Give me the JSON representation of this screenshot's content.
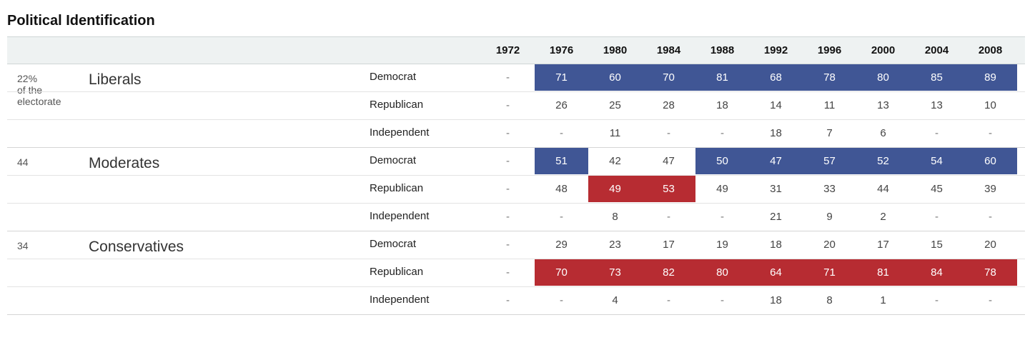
{
  "title": "Political Identification",
  "colors": {
    "democrat_highlight": "#405695",
    "republican_highlight": "#b72c32"
  },
  "chart_data": {
    "type": "table",
    "title": "Political Identification",
    "columns": [
      "1972",
      "1976",
      "1980",
      "1984",
      "1988",
      "1992",
      "1996",
      "2000",
      "2004",
      "2008"
    ],
    "groups": [
      {
        "pct": "22%",
        "pct_note": "of the electorate",
        "name": "Liberals",
        "rows": [
          {
            "party": "Democrat",
            "values": [
              "-",
              "71",
              "60",
              "70",
              "81",
              "68",
              "78",
              "80",
              "85",
              "89"
            ],
            "highlight": [
              "",
              "dem",
              "dem",
              "dem",
              "dem",
              "dem",
              "dem",
              "dem",
              "dem",
              "dem"
            ]
          },
          {
            "party": "Republican",
            "values": [
              "-",
              "26",
              "25",
              "28",
              "18",
              "14",
              "11",
              "13",
              "13",
              "10"
            ],
            "highlight": [
              "",
              "",
              "",
              "",
              "",
              "",
              "",
              "",
              "",
              ""
            ]
          },
          {
            "party": "Independent",
            "values": [
              "-",
              "-",
              "11",
              "-",
              "-",
              "18",
              "7",
              "6",
              "-",
              "-"
            ],
            "highlight": [
              "",
              "",
              "",
              "",
              "",
              "",
              "",
              "",
              "",
              ""
            ]
          }
        ]
      },
      {
        "pct": "44",
        "pct_note": "",
        "name": "Moderates",
        "rows": [
          {
            "party": "Democrat",
            "values": [
              "-",
              "51",
              "42",
              "47",
              "50",
              "47",
              "57",
              "52",
              "54",
              "60"
            ],
            "highlight": [
              "",
              "dem",
              "",
              "",
              "dem",
              "dem",
              "dem",
              "dem",
              "dem",
              "dem"
            ]
          },
          {
            "party": "Republican",
            "values": [
              "-",
              "48",
              "49",
              "53",
              "49",
              "31",
              "33",
              "44",
              "45",
              "39"
            ],
            "highlight": [
              "",
              "",
              "rep",
              "rep",
              "",
              "",
              "",
              "",
              "",
              ""
            ]
          },
          {
            "party": "Independent",
            "values": [
              "-",
              "-",
              "8",
              "-",
              "-",
              "21",
              "9",
              "2",
              "-",
              "-"
            ],
            "highlight": [
              "",
              "",
              "",
              "",
              "",
              "",
              "",
              "",
              "",
              ""
            ]
          }
        ]
      },
      {
        "pct": "34",
        "pct_note": "",
        "name": "Conservatives",
        "rows": [
          {
            "party": "Democrat",
            "values": [
              "-",
              "29",
              "23",
              "17",
              "19",
              "18",
              "20",
              "17",
              "15",
              "20"
            ],
            "highlight": [
              "",
              "",
              "",
              "",
              "",
              "",
              "",
              "",
              "",
              ""
            ]
          },
          {
            "party": "Republican",
            "values": [
              "-",
              "70",
              "73",
              "82",
              "80",
              "64",
              "71",
              "81",
              "84",
              "78"
            ],
            "highlight": [
              "",
              "rep",
              "rep",
              "rep",
              "rep",
              "rep",
              "rep",
              "rep",
              "rep",
              "rep"
            ]
          },
          {
            "party": "Independent",
            "values": [
              "-",
              "-",
              "4",
              "-",
              "-",
              "18",
              "8",
              "1",
              "-",
              "-"
            ],
            "highlight": [
              "",
              "",
              "",
              "",
              "",
              "",
              "",
              "",
              "",
              ""
            ]
          }
        ]
      }
    ]
  }
}
